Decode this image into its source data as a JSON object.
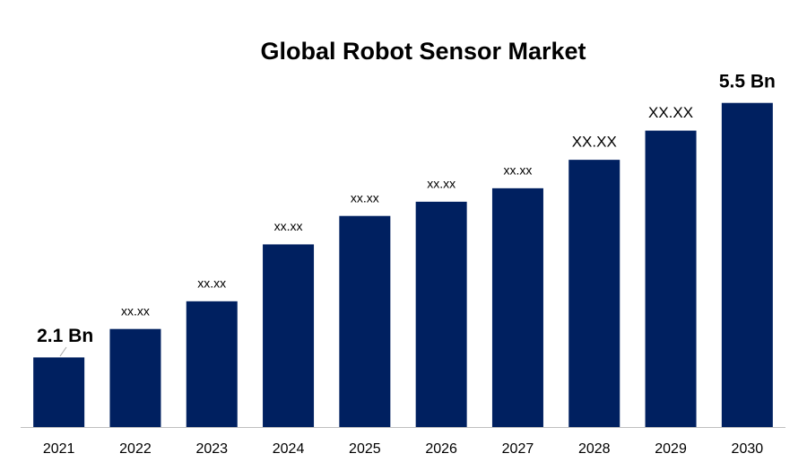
{
  "chart_data": {
    "type": "bar",
    "title": "Global Robot Sensor Market",
    "categories": [
      "2021",
      "2022",
      "2023",
      "2024",
      "2025",
      "2026",
      "2027",
      "2028",
      "2029",
      "2030"
    ],
    "values": [
      2.1,
      2.48,
      2.85,
      3.61,
      3.99,
      4.18,
      4.36,
      4.74,
      5.13,
      5.5
    ],
    "value_labels": [
      "2.1 Bn",
      "xx.xx",
      "xx.xx",
      "xx.xx",
      "xx.xx",
      "xx.xx",
      "xx.xx",
      "XX.XX",
      "XX.XX",
      "5.5 Bn"
    ],
    "color": "#002060",
    "ylim": [
      1.17,
      6.0
    ]
  }
}
